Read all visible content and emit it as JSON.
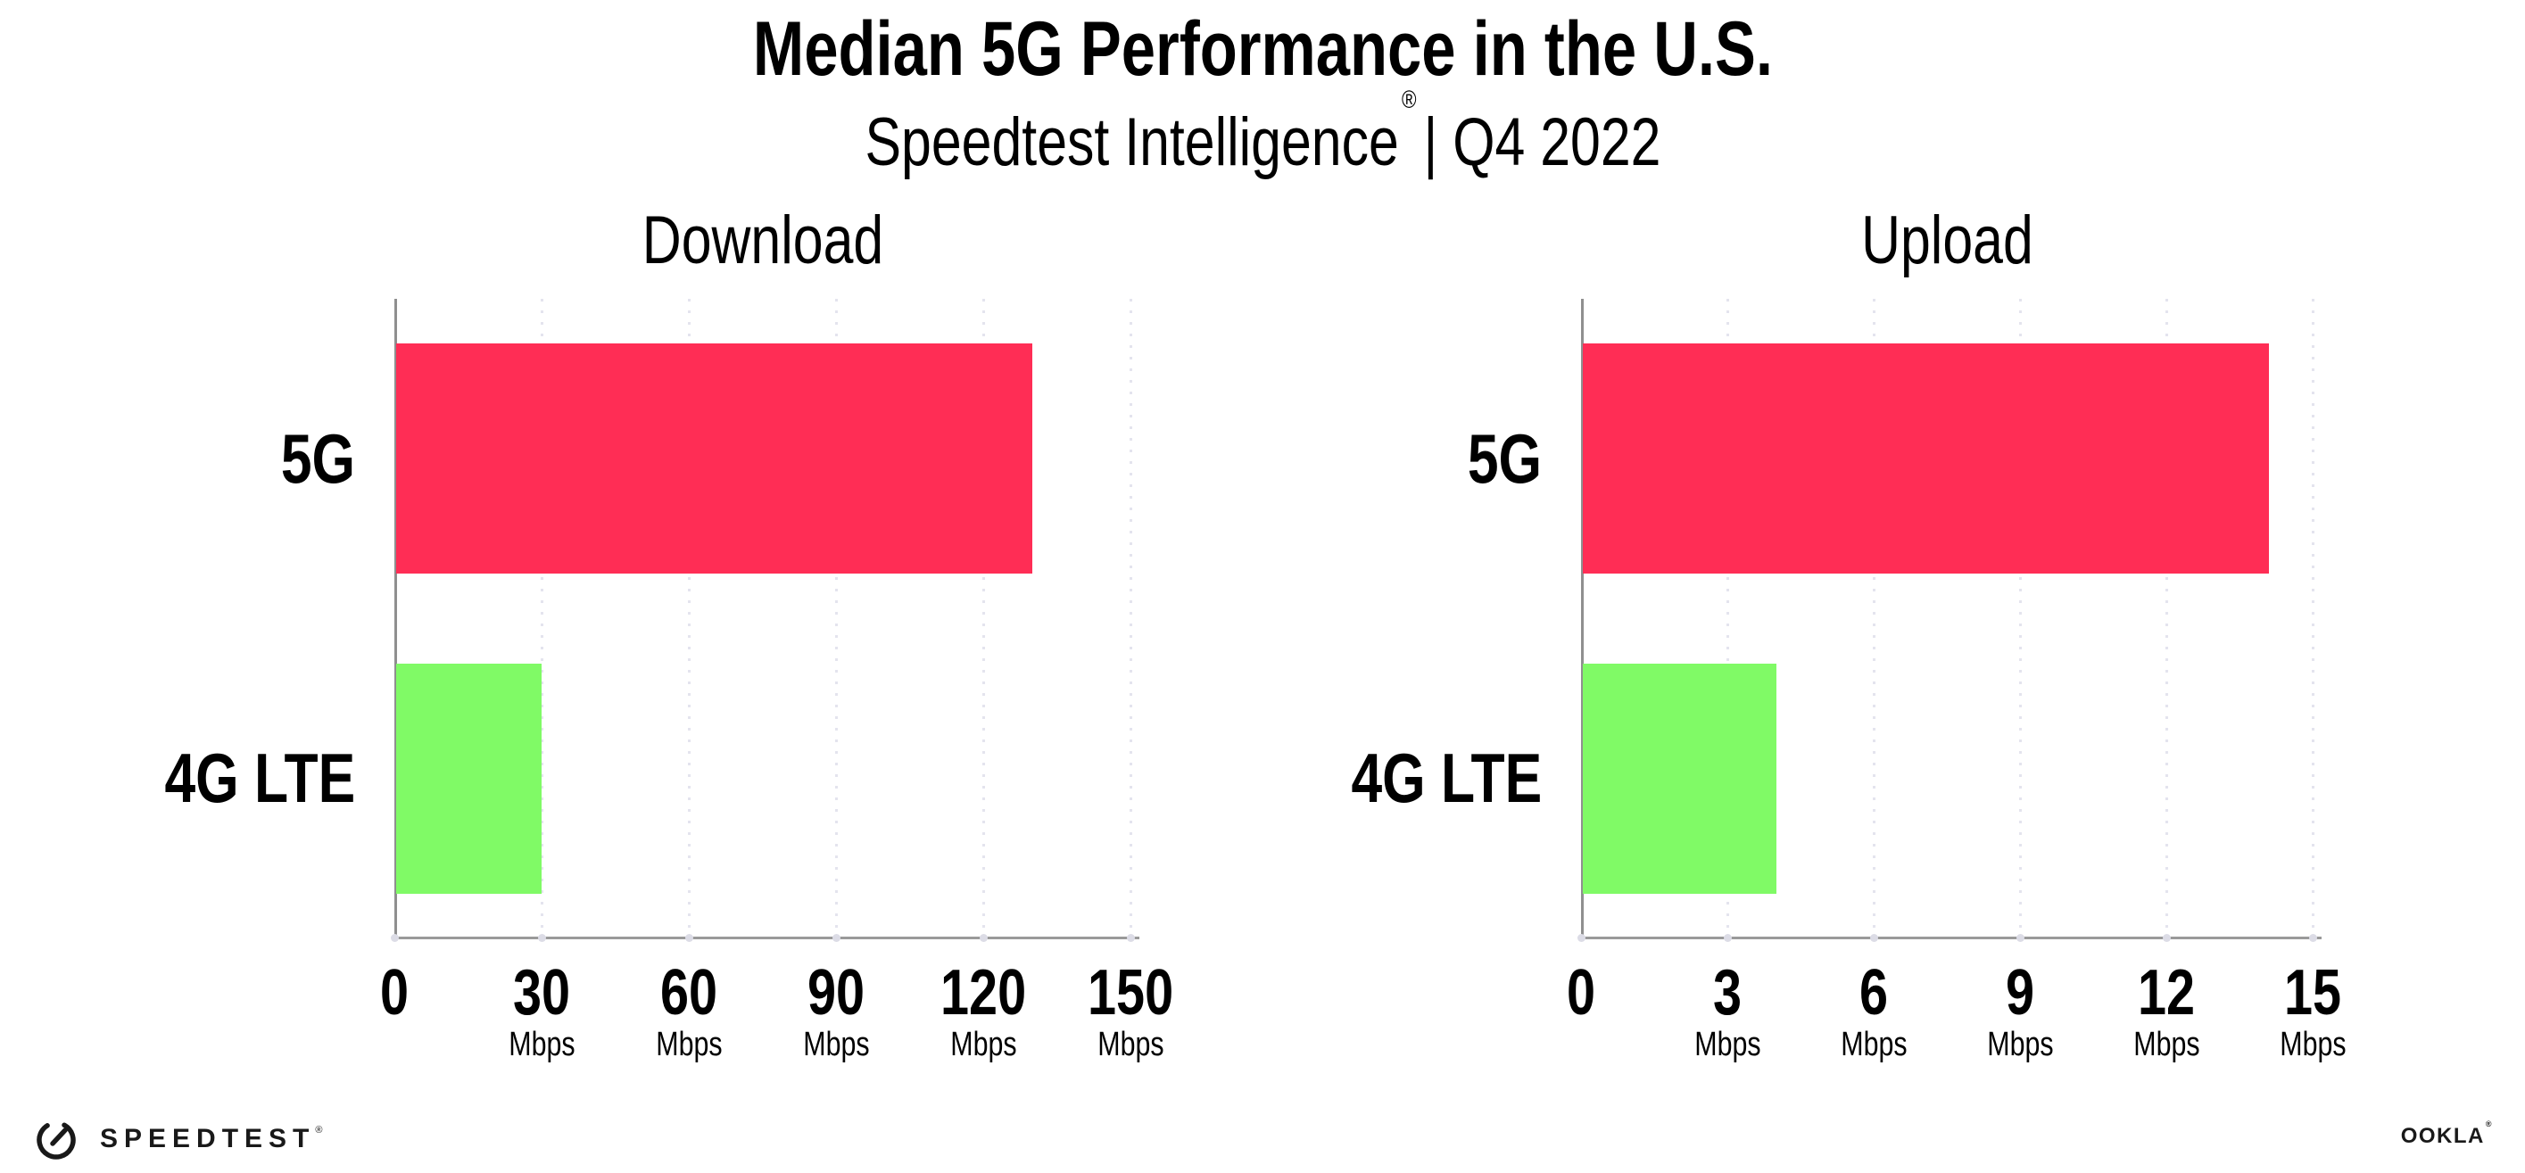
{
  "header": {
    "title": "Median 5G Performance in the U.S.",
    "subtitle_brand": "Speedtest Intelligence",
    "subtitle_reg": "®",
    "subtitle_rest": "| Q4 2022"
  },
  "chart_data": [
    {
      "type": "bar",
      "orientation": "horizontal",
      "title": "Download",
      "categories": [
        "5G",
        "4G LTE"
      ],
      "values": [
        130,
        30
      ],
      "unit": "Mbps",
      "xlim": [
        0,
        150
      ],
      "xticks": [
        0,
        30,
        60,
        90,
        120,
        150
      ],
      "bar_colors": [
        "#FF2D55",
        "#80FA66"
      ],
      "grid": true,
      "legend": false
    },
    {
      "type": "bar",
      "orientation": "horizontal",
      "title": "Upload",
      "categories": [
        "5G",
        "4G LTE"
      ],
      "values": [
        14.1,
        4
      ],
      "unit": "Mbps",
      "xlim": [
        0,
        15
      ],
      "xticks": [
        0,
        3,
        6,
        9,
        12,
        15
      ],
      "bar_colors": [
        "#FF2D55",
        "#80FA66"
      ],
      "grid": true,
      "legend": false
    }
  ],
  "colors": {
    "bar_5g": "#FF2D55",
    "bar_4g_lte": "#80FA66",
    "gridline": "#E4E4EE",
    "axis": "#8F8F8F",
    "text": "#000000"
  },
  "footer": {
    "speedtest_label": "SPEEDTEST",
    "speedtest_reg": "®",
    "ookla_label": "OOKLA",
    "ookla_reg": "®"
  }
}
